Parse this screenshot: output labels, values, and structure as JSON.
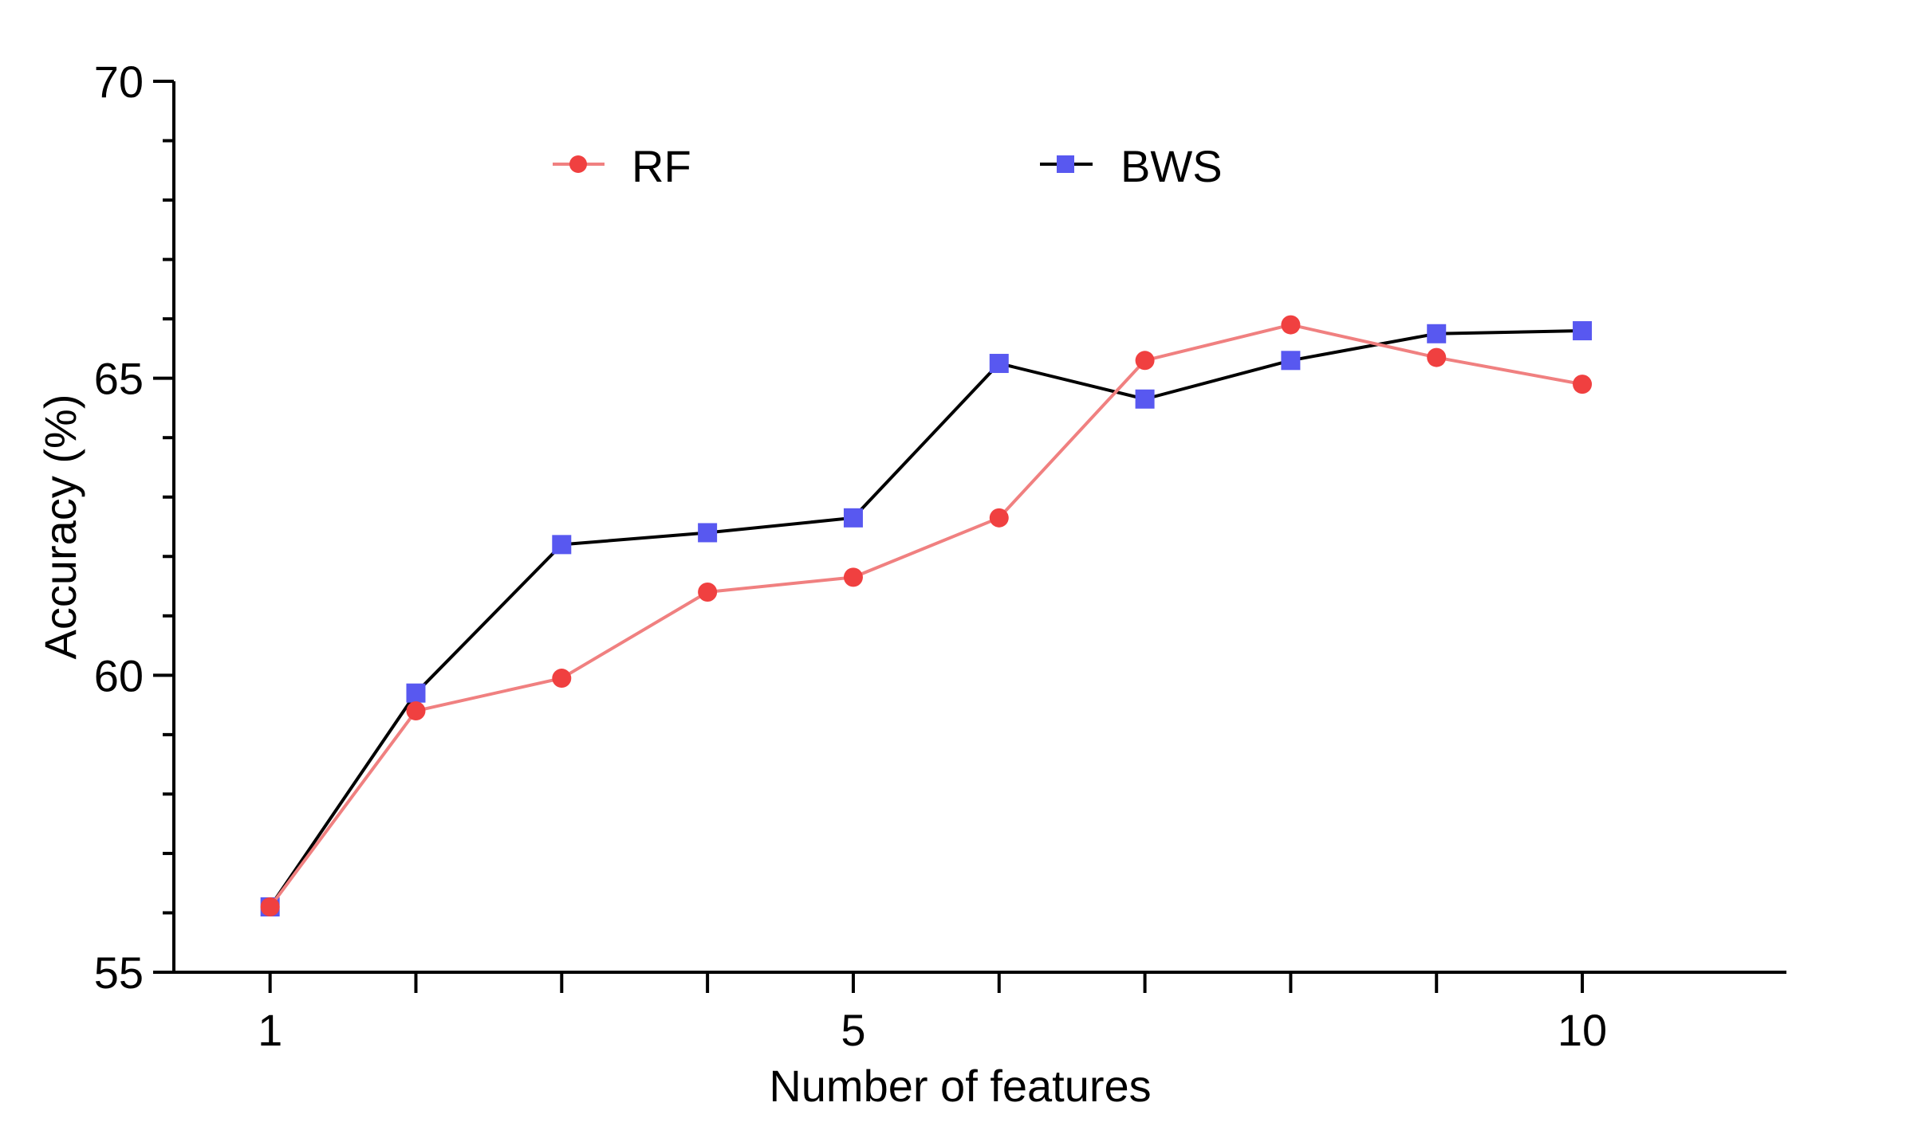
{
  "chart_data": {
    "type": "line",
    "title": "",
    "xlabel": "Number of features",
    "ylabel": "Accuracy (%)",
    "x": [
      1,
      2,
      3,
      4,
      5,
      6,
      7,
      8,
      9,
      10
    ],
    "xlim": [
      0.34,
      11.4
    ],
    "ylim": [
      55,
      70
    ],
    "x_ticks": [
      1,
      2,
      3,
      4,
      5,
      6,
      7,
      8,
      9,
      10
    ],
    "x_tick_labels": [
      "1",
      "",
      "",
      "",
      "5",
      "",
      "",
      "",
      "",
      "10"
    ],
    "y_major_ticks": [
      55,
      60,
      65,
      70
    ],
    "y_minor_ticks": [
      56,
      57,
      58,
      59,
      61,
      62,
      63,
      64,
      66,
      67,
      68,
      69
    ],
    "y_tick_labels": [
      "55",
      "60",
      "65",
      "70"
    ],
    "grid": false,
    "legend_position": "top",
    "series": [
      {
        "name": "RF",
        "marker": "circle",
        "line_color": "#f08080",
        "marker_color": "#f04040",
        "values": [
          56.1,
          59.4,
          59.95,
          61.4,
          61.65,
          62.65,
          65.3,
          65.9,
          65.35,
          64.9
        ]
      },
      {
        "name": "BWS",
        "marker": "square",
        "line_color": "#000000",
        "marker_color": "#5858f0",
        "values": [
          56.1,
          59.7,
          62.2,
          62.4,
          62.65,
          65.25,
          64.65,
          65.3,
          65.75,
          65.8
        ]
      }
    ]
  }
}
